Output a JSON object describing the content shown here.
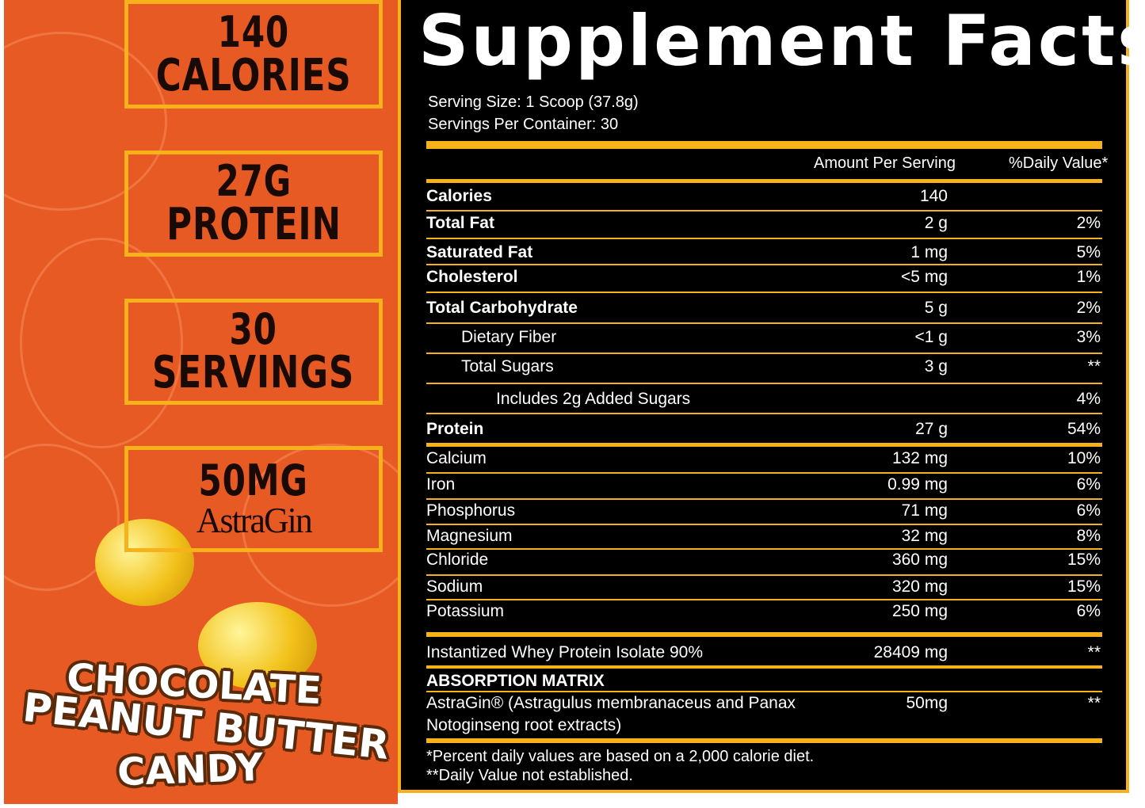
{
  "stats": [
    {
      "line1": "140",
      "line2": "CALORIES"
    },
    {
      "line1": "27G",
      "line2": "PROTEIN"
    },
    {
      "line1": "30",
      "line2": "SERVINGS"
    },
    {
      "line1": "50MG",
      "line2": "AstraGin"
    }
  ],
  "flavor": {
    "line1": "CHOCOLATE",
    "line2": "PEANUT BUTTER",
    "line3": "CANDY"
  },
  "facts": {
    "title": "Supplement Facts",
    "serving_size": "Serving Size: 1 Scoop (37.8g)",
    "servings_per_container": "Servings Per Container: 30",
    "col_amount": "Amount Per Serving",
    "col_dv": "%Daily Value*",
    "rows": [
      {
        "name": "Calories",
        "amount": "140",
        "dv": ""
      },
      {
        "name": "Total Fat",
        "amount": "2 g",
        "dv": "2%"
      },
      {
        "name": "Saturated Fat",
        "amount": "1 mg",
        "dv": "5%"
      },
      {
        "name": "Cholesterol",
        "amount": "<5 mg",
        "dv": "1%"
      },
      {
        "name": "Total Carbohydrate",
        "amount": "5 g",
        "dv": "2%"
      },
      {
        "name": "Dietary Fiber",
        "amount": "<1 g",
        "dv": "3%"
      },
      {
        "name": "Total Sugars",
        "amount": "3 g",
        "dv": "**"
      },
      {
        "name": "Includes 2g Added Sugars",
        "amount": "",
        "dv": "4%"
      },
      {
        "name": "Protein",
        "amount": "27 g",
        "dv": "54%"
      },
      {
        "name": "Calcium",
        "amount": "132 mg",
        "dv": "10%"
      },
      {
        "name": "Iron",
        "amount": "0.99 mg",
        "dv": "6%"
      },
      {
        "name": "Phosphorus",
        "amount": "71 mg",
        "dv": "6%"
      },
      {
        "name": "Magnesium",
        "amount": "32 mg",
        "dv": "8%"
      },
      {
        "name": "Chloride",
        "amount": "360 mg",
        "dv": "15%"
      },
      {
        "name": "Sodium",
        "amount": "320 mg",
        "dv": "15%"
      },
      {
        "name": "Potassium",
        "amount": "250 mg",
        "dv": "6%"
      }
    ],
    "whey": {
      "name": "Instantized Whey Protein Isolate 90%",
      "amount": "28409 mg",
      "dv": "**"
    },
    "matrix_title": "ABSORPTION MATRIX",
    "astragin": {
      "name_line1": "AstraGin® (Astragulus membranaceus and Panax",
      "name_line2": "Notoginseng root extracts)",
      "amount": "50mg",
      "dv": "**"
    },
    "footnote1": "*Percent daily values are based on a 2,000 calorie diet.",
    "footnote2": "**Daily Value not established."
  },
  "colors": {
    "accent": "#f7b21b",
    "background_left": "#e85a24",
    "panel": "#000000"
  }
}
